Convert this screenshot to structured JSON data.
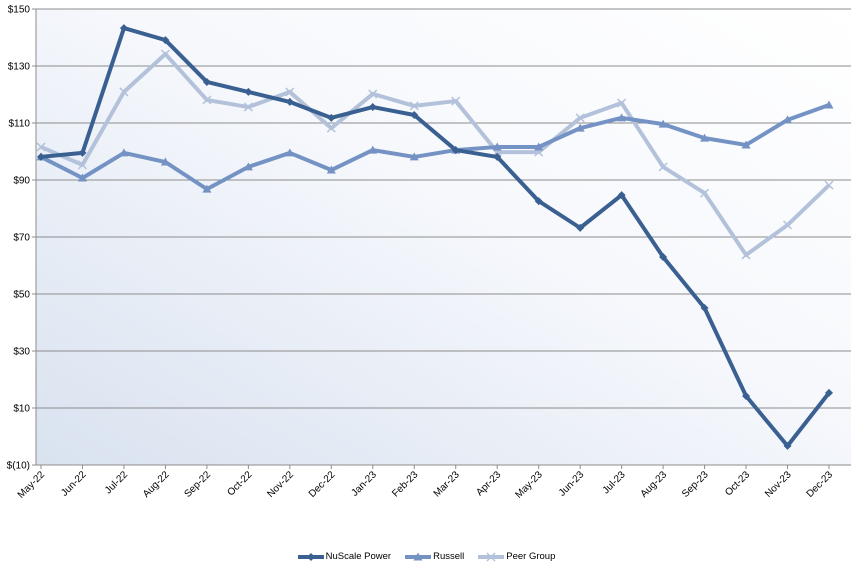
{
  "chart_data": {
    "type": "line",
    "title": "",
    "xlabel": "",
    "ylabel": "",
    "ylim": [
      -10,
      150
    ],
    "yticks": [
      -10,
      10,
      30,
      50,
      70,
      90,
      110,
      130,
      150
    ],
    "ytick_labels": [
      "$(10)",
      "$10",
      "$30",
      "$50",
      "$70",
      "$90",
      "$110",
      "$130",
      "$150"
    ],
    "grid": "horizontal",
    "legend": "bottom",
    "categories": [
      "May-22",
      "Jun-22",
      "Jul-22",
      "Aug-22",
      "Sep-22",
      "Oct-22",
      "Nov-22",
      "Dec-22",
      "Jan-23",
      "Feb-23",
      "Mar-23",
      "Apr-23",
      "May-23",
      "Jun-23",
      "Jul-23",
      "Aug-23",
      "Sep-23",
      "Oct-23",
      "Nov-23",
      "Dec-23"
    ],
    "series": [
      {
        "name": "NuScale Power",
        "color": "#3a6091",
        "marker": "diamond",
        "values": [
          98.1,
          99.5,
          143.3,
          139.1,
          124.4,
          120.9,
          117.4,
          111.8,
          115.6,
          112.8,
          100.5,
          98.1,
          82.6,
          73.2,
          84.7,
          63.0,
          45.1,
          14.2,
          -3.3,
          15.3
        ]
      },
      {
        "name": "Russell",
        "color": "#7493c4",
        "marker": "triangle",
        "values": [
          98.1,
          90.7,
          99.5,
          96.3,
          86.8,
          94.6,
          99.5,
          93.5,
          100.5,
          98.1,
          100.5,
          101.6,
          101.6,
          108.2,
          111.8,
          109.6,
          104.7,
          102.3,
          111.1,
          116.3
        ]
      },
      {
        "name": "Peer Group",
        "color": "#b3c2da",
        "marker": "x",
        "values": [
          101.6,
          95.3,
          120.9,
          134.2,
          118.1,
          115.6,
          120.9,
          108.2,
          120.2,
          116.0,
          117.7,
          99.8,
          99.8,
          111.8,
          117.0,
          94.6,
          85.4,
          63.7,
          74.2,
          88.2
        ]
      }
    ]
  }
}
